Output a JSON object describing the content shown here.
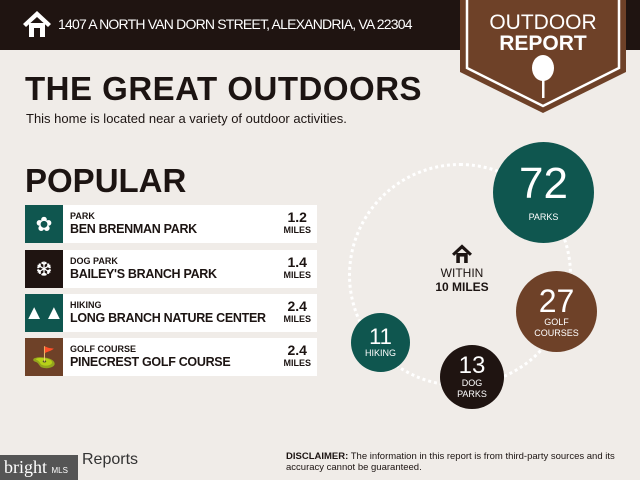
{
  "header": {
    "address": "1407 A NORTH VAN DORN STREET, ALEXANDRIA, VA 22304",
    "badge_line1": "OUTDOOR",
    "badge_line2": "REPORT"
  },
  "title": "THE GREAT OUTDOORS",
  "subtitle": "This home is located near a variety of outdoor activities.",
  "popular": {
    "heading": "POPULAR",
    "items": [
      {
        "category": "PARK",
        "name": "BEN BRENMAN PARK",
        "distance": "1.2",
        "unit": "MILES",
        "color": "#0f564f",
        "icon": "park-icon"
      },
      {
        "category": "DOG PARK",
        "name": "BAILEY'S BRANCH PARK",
        "distance": "1.4",
        "unit": "MILES",
        "color": "#1f1411",
        "icon": "paw-icon"
      },
      {
        "category": "HIKING",
        "name": "LONG BRANCH NATURE CENTER",
        "distance": "2.4",
        "unit": "MILES",
        "color": "#0f564f",
        "icon": "trees-icon"
      },
      {
        "category": "GOLF COURSE",
        "name": "PINECREST GOLF COURSE",
        "distance": "2.4",
        "unit": "MILES",
        "color": "#6e4128",
        "icon": "golf-bag-icon"
      }
    ]
  },
  "within": {
    "line1": "WITHIN",
    "line2": "10 MILES"
  },
  "counts": [
    {
      "value": "72",
      "label": "PARKS",
      "color": "#0f564f"
    },
    {
      "value": "27",
      "label": "GOLF COURSES",
      "color": "#6e4128"
    },
    {
      "value": "13",
      "label": "DOG PARKS",
      "color": "#1f1411"
    },
    {
      "value": "11",
      "label": "HIKING",
      "color": "#0f564f"
    }
  ],
  "footer": {
    "logo": "bright",
    "logo_sub": "MLS",
    "reports": "Reports",
    "disclaimer_label": "DISCLAIMER:",
    "disclaimer": " The information in this report is from third-party sources and its accuracy cannot be guaranteed."
  }
}
